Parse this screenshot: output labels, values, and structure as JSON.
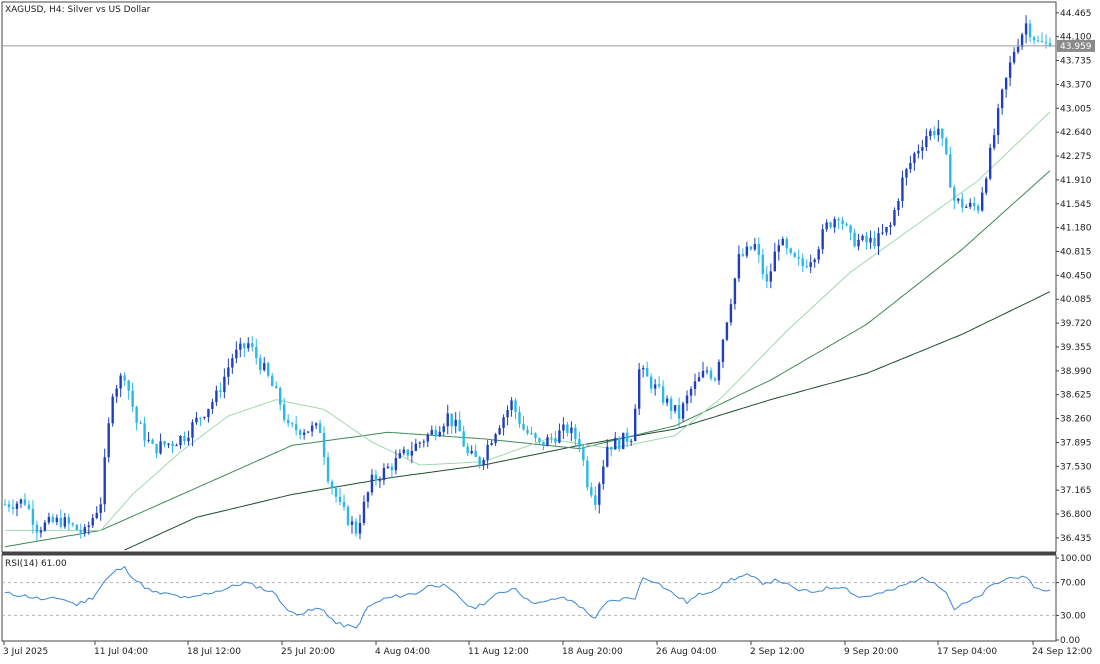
{
  "header": {
    "symbol_label": "XAGUSD, H4:  Silver vs US Dollar"
  },
  "rsi_panel": {
    "label": "RSI(14) 61.00"
  },
  "colors": {
    "bull_candle": "#1f3fbf",
    "bear_candle": "#29b8e8",
    "ma_fast": "#9fd9b0",
    "ma_mid": "#3d8a55",
    "ma_slow": "#1f4d2f",
    "rsi_line": "#3a86d8",
    "price_line": "#9a9a9a",
    "price_tag_bg": "#8a8a8a",
    "frame": "#444444"
  },
  "chart_data": [
    {
      "type": "candlestick",
      "title": "XAGUSD, H4:  Silver vs US Dollar",
      "current_price": 43.959,
      "current_price_label": "43.959",
      "ylim": [
        36.25,
        44.6
      ],
      "y_ticks": [
        "44.465",
        "44.100",
        "43.735",
        "43.370",
        "43.005",
        "42.640",
        "42.275",
        "41.910",
        "41.545",
        "41.180",
        "40.815",
        "40.450",
        "40.085",
        "39.720",
        "39.355",
        "38.990",
        "38.625",
        "38.260",
        "37.895",
        "37.530",
        "37.165",
        "36.800",
        "36.435"
      ],
      "x_tick_labels": [
        "3 Jul 2025",
        "11 Jul 04:00",
        "18 Jul 12:00",
        "25 Jul 20:00",
        "4 Aug 04:00",
        "11 Aug 12:00",
        "18 Aug 20:00",
        "26 Aug 04:00",
        "2 Sep 12:00",
        "9 Sep 20:00",
        "17 Sep 04:00",
        "24 Sep 12:00"
      ],
      "close_path": [
        {
          "i": 0,
          "c": 36.95
        },
        {
          "i": 5,
          "c": 37.0
        },
        {
          "i": 8,
          "c": 36.6
        },
        {
          "i": 14,
          "c": 36.7
        },
        {
          "i": 20,
          "c": 36.5
        },
        {
          "i": 24,
          "c": 37.0
        },
        {
          "i": 27,
          "c": 38.7
        },
        {
          "i": 30,
          "c": 38.95
        },
        {
          "i": 33,
          "c": 38.2
        },
        {
          "i": 37,
          "c": 37.8
        },
        {
          "i": 42,
          "c": 37.9
        },
        {
          "i": 45,
          "c": 38.0
        },
        {
          "i": 49,
          "c": 38.3
        },
        {
          "i": 53,
          "c": 38.6
        },
        {
          "i": 57,
          "c": 39.2
        },
        {
          "i": 61,
          "c": 39.4
        },
        {
          "i": 65,
          "c": 39.0
        },
        {
          "i": 69,
          "c": 38.5
        },
        {
          "i": 71,
          "c": 38.1
        },
        {
          "i": 75,
          "c": 38.1
        },
        {
          "i": 79,
          "c": 38.1
        },
        {
          "i": 81,
          "c": 37.4
        },
        {
          "i": 84,
          "c": 36.9
        },
        {
          "i": 88,
          "c": 36.55
        },
        {
          "i": 92,
          "c": 37.3
        },
        {
          "i": 96,
          "c": 37.5
        },
        {
          "i": 100,
          "c": 37.7
        },
        {
          "i": 104,
          "c": 37.9
        },
        {
          "i": 108,
          "c": 38.1
        },
        {
          "i": 111,
          "c": 38.3
        },
        {
          "i": 114,
          "c": 38.05
        },
        {
          "i": 116,
          "c": 37.7
        },
        {
          "i": 119,
          "c": 37.6
        },
        {
          "i": 123,
          "c": 38.1
        },
        {
          "i": 127,
          "c": 38.5
        },
        {
          "i": 130,
          "c": 38.1
        },
        {
          "i": 134,
          "c": 37.85
        },
        {
          "i": 138,
          "c": 38.0
        },
        {
          "i": 141,
          "c": 38.1
        },
        {
          "i": 144,
          "c": 37.9
        },
        {
          "i": 146,
          "c": 37.3
        },
        {
          "i": 148,
          "c": 37.05
        },
        {
          "i": 151,
          "c": 37.85
        },
        {
          "i": 154,
          "c": 37.9
        },
        {
          "i": 157,
          "c": 38.0
        },
        {
          "i": 159,
          "c": 39.0
        },
        {
          "i": 162,
          "c": 38.8
        },
        {
          "i": 166,
          "c": 38.5
        },
        {
          "i": 169,
          "c": 38.3
        },
        {
          "i": 172,
          "c": 38.7
        },
        {
          "i": 176,
          "c": 39.0
        },
        {
          "i": 178,
          "c": 38.9
        },
        {
          "i": 181,
          "c": 39.8
        },
        {
          "i": 184,
          "c": 40.7
        },
        {
          "i": 188,
          "c": 40.9
        },
        {
          "i": 191,
          "c": 40.3
        },
        {
          "i": 194,
          "c": 41.0
        },
        {
          "i": 197,
          "c": 40.7
        },
        {
          "i": 200,
          "c": 40.6
        },
        {
          "i": 203,
          "c": 40.8
        },
        {
          "i": 206,
          "c": 41.2
        },
        {
          "i": 209,
          "c": 41.4
        },
        {
          "i": 212,
          "c": 41.0
        },
        {
          "i": 216,
          "c": 40.95
        },
        {
          "i": 219,
          "c": 41.0
        },
        {
          "i": 222,
          "c": 41.2
        },
        {
          "i": 225,
          "c": 41.9
        },
        {
          "i": 228,
          "c": 42.3
        },
        {
          "i": 231,
          "c": 42.6
        },
        {
          "i": 234,
          "c": 42.7
        },
        {
          "i": 236,
          "c": 42.2
        },
        {
          "i": 238,
          "c": 41.6
        },
        {
          "i": 241,
          "c": 41.5
        },
        {
          "i": 244,
          "c": 41.5
        },
        {
          "i": 247,
          "c": 42.3
        },
        {
          "i": 250,
          "c": 43.2
        },
        {
          "i": 253,
          "c": 43.9
        },
        {
          "i": 256,
          "c": 44.3
        },
        {
          "i": 259,
          "c": 44.0
        },
        {
          "i": 262,
          "c": 43.96
        }
      ],
      "ma_fast_path": [
        {
          "i": 0,
          "v": 36.55
        },
        {
          "i": 24,
          "v": 36.55
        },
        {
          "i": 32,
          "v": 37.1
        },
        {
          "i": 44,
          "v": 37.75
        },
        {
          "i": 56,
          "v": 38.3
        },
        {
          "i": 68,
          "v": 38.55
        },
        {
          "i": 80,
          "v": 38.4
        },
        {
          "i": 92,
          "v": 37.9
        },
        {
          "i": 104,
          "v": 37.55
        },
        {
          "i": 120,
          "v": 37.6
        },
        {
          "i": 136,
          "v": 37.95
        },
        {
          "i": 152,
          "v": 37.8
        },
        {
          "i": 168,
          "v": 38.0
        },
        {
          "i": 180,
          "v": 38.6
        },
        {
          "i": 196,
          "v": 39.6
        },
        {
          "i": 212,
          "v": 40.5
        },
        {
          "i": 228,
          "v": 41.2
        },
        {
          "i": 244,
          "v": 41.9
        },
        {
          "i": 262,
          "v": 42.95
        }
      ],
      "ma_mid_path": [
        {
          "i": 0,
          "v": 36.3
        },
        {
          "i": 24,
          "v": 36.55
        },
        {
          "i": 48,
          "v": 37.2
        },
        {
          "i": 72,
          "v": 37.85
        },
        {
          "i": 96,
          "v": 38.05
        },
        {
          "i": 120,
          "v": 37.95
        },
        {
          "i": 144,
          "v": 37.8
        },
        {
          "i": 168,
          "v": 38.15
        },
        {
          "i": 192,
          "v": 38.85
        },
        {
          "i": 216,
          "v": 39.7
        },
        {
          "i": 240,
          "v": 40.85
        },
        {
          "i": 262,
          "v": 42.05
        }
      ],
      "ma_slow_path": [
        {
          "i": 30,
          "v": 36.25
        },
        {
          "i": 48,
          "v": 36.75
        },
        {
          "i": 72,
          "v": 37.1
        },
        {
          "i": 96,
          "v": 37.35
        },
        {
          "i": 120,
          "v": 37.55
        },
        {
          "i": 144,
          "v": 37.85
        },
        {
          "i": 168,
          "v": 38.1
        },
        {
          "i": 192,
          "v": 38.55
        },
        {
          "i": 216,
          "v": 38.95
        },
        {
          "i": 240,
          "v": 39.55
        },
        {
          "i": 262,
          "v": 40.2
        }
      ]
    },
    {
      "type": "line",
      "title": "RSI(14) 61.00",
      "ylim": [
        0,
        100
      ],
      "levels": [
        30,
        70
      ],
      "y_ticks": [
        "100.00",
        "70.00",
        "30.00",
        "0.00"
      ],
      "rsi_path": [
        {
          "i": 0,
          "v": 57
        },
        {
          "i": 5,
          "v": 54
        },
        {
          "i": 10,
          "v": 49
        },
        {
          "i": 14,
          "v": 51
        },
        {
          "i": 18,
          "v": 43
        },
        {
          "i": 22,
          "v": 52
        },
        {
          "i": 25,
          "v": 72
        },
        {
          "i": 28,
          "v": 85
        },
        {
          "i": 30,
          "v": 88
        },
        {
          "i": 33,
          "v": 72
        },
        {
          "i": 37,
          "v": 58
        },
        {
          "i": 42,
          "v": 55
        },
        {
          "i": 46,
          "v": 50
        },
        {
          "i": 50,
          "v": 56
        },
        {
          "i": 55,
          "v": 62
        },
        {
          "i": 60,
          "v": 70
        },
        {
          "i": 64,
          "v": 64
        },
        {
          "i": 68,
          "v": 56
        },
        {
          "i": 71,
          "v": 34
        },
        {
          "i": 75,
          "v": 33
        },
        {
          "i": 78,
          "v": 38
        },
        {
          "i": 80,
          "v": 36
        },
        {
          "i": 83,
          "v": 20
        },
        {
          "i": 86,
          "v": 17
        },
        {
          "i": 88,
          "v": 14
        },
        {
          "i": 91,
          "v": 40
        },
        {
          "i": 95,
          "v": 50
        },
        {
          "i": 99,
          "v": 54
        },
        {
          "i": 103,
          "v": 57
        },
        {
          "i": 107,
          "v": 68
        },
        {
          "i": 110,
          "v": 66
        },
        {
          "i": 114,
          "v": 52
        },
        {
          "i": 117,
          "v": 38
        },
        {
          "i": 120,
          "v": 45
        },
        {
          "i": 124,
          "v": 57
        },
        {
          "i": 128,
          "v": 64
        },
        {
          "i": 131,
          "v": 48
        },
        {
          "i": 135,
          "v": 45
        },
        {
          "i": 139,
          "v": 52
        },
        {
          "i": 143,
          "v": 46
        },
        {
          "i": 146,
          "v": 33
        },
        {
          "i": 148,
          "v": 27
        },
        {
          "i": 151,
          "v": 46
        },
        {
          "i": 155,
          "v": 50
        },
        {
          "i": 158,
          "v": 52
        },
        {
          "i": 160,
          "v": 76
        },
        {
          "i": 163,
          "v": 72
        },
        {
          "i": 167,
          "v": 58
        },
        {
          "i": 171,
          "v": 46
        },
        {
          "i": 174,
          "v": 55
        },
        {
          "i": 178,
          "v": 62
        },
        {
          "i": 182,
          "v": 74
        },
        {
          "i": 186,
          "v": 79
        },
        {
          "i": 190,
          "v": 70
        },
        {
          "i": 194,
          "v": 73
        },
        {
          "i": 198,
          "v": 62
        },
        {
          "i": 202,
          "v": 58
        },
        {
          "i": 206,
          "v": 63
        },
        {
          "i": 210,
          "v": 66
        },
        {
          "i": 214,
          "v": 52
        },
        {
          "i": 218,
          "v": 55
        },
        {
          "i": 222,
          "v": 60
        },
        {
          "i": 226,
          "v": 68
        },
        {
          "i": 229,
          "v": 75
        },
        {
          "i": 233,
          "v": 72
        },
        {
          "i": 236,
          "v": 58
        },
        {
          "i": 238,
          "v": 38
        },
        {
          "i": 241,
          "v": 45
        },
        {
          "i": 244,
          "v": 52
        },
        {
          "i": 247,
          "v": 65
        },
        {
          "i": 250,
          "v": 72
        },
        {
          "i": 253,
          "v": 78
        },
        {
          "i": 256,
          "v": 74
        },
        {
          "i": 259,
          "v": 62
        },
        {
          "i": 262,
          "v": 61
        }
      ]
    }
  ]
}
